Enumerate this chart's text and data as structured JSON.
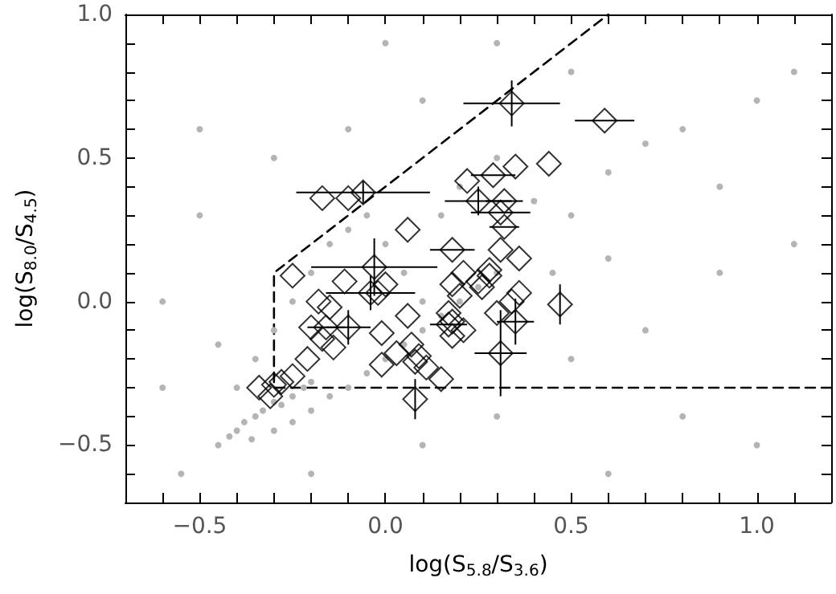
{
  "chart_data": {
    "type": "scatter",
    "xlabel": "log(S$_{5.8}$/S$_{3.6}$)",
    "ylabel": "log(S$_{8.0}$/S$_{4.5}$)",
    "xlim": [
      -0.7,
      1.2
    ],
    "ylim": [
      -0.7,
      1.0
    ],
    "xticks": [
      {
        "value": -0.7,
        "label": null
      },
      {
        "value": -0.6,
        "label": null
      },
      {
        "value": -0.5,
        "label": "−0.5"
      },
      {
        "value": -0.4,
        "label": null
      },
      {
        "value": -0.3,
        "label": null
      },
      {
        "value": -0.2,
        "label": null
      },
      {
        "value": -0.1,
        "label": null
      },
      {
        "value": 0,
        "label": "0.0"
      },
      {
        "value": 0.1,
        "label": null
      },
      {
        "value": 0.2,
        "label": null
      },
      {
        "value": 0.3,
        "label": null
      },
      {
        "value": 0.4,
        "label": null
      },
      {
        "value": 0.5,
        "label": "0.5"
      },
      {
        "value": 0.6,
        "label": null
      },
      {
        "value": 0.7,
        "label": null
      },
      {
        "value": 0.8,
        "label": null
      },
      {
        "value": 0.9,
        "label": null
      },
      {
        "value": 1.0,
        "label": "1.0"
      },
      {
        "value": 1.1,
        "label": null
      },
      {
        "value": 1.2,
        "label": null
      }
    ],
    "yticks": [
      {
        "value": -0.7,
        "label": null
      },
      {
        "value": -0.6,
        "label": null
      },
      {
        "value": -0.5,
        "label": "−0.5"
      },
      {
        "value": -0.4,
        "label": null
      },
      {
        "value": -0.3,
        "label": null
      },
      {
        "value": -0.2,
        "label": null
      },
      {
        "value": -0.1,
        "label": null
      },
      {
        "value": 0,
        "label": "0.0"
      },
      {
        "value": 0.1,
        "label": null
      },
      {
        "value": 0.2,
        "label": null
      },
      {
        "value": 0.3,
        "label": null
      },
      {
        "value": 0.4,
        "label": null
      },
      {
        "value": 0.5,
        "label": "0.5"
      },
      {
        "value": 0.6,
        "label": null
      },
      {
        "value": 0.7,
        "label": null
      },
      {
        "value": 0.8,
        "label": null
      },
      {
        "value": 0.9,
        "label": null
      },
      {
        "value": 1.0,
        "label": "1.0"
      }
    ],
    "series": [
      {
        "marker": "circle",
        "color": "#b4b4b4",
        "x": [
          -0.45,
          -0.42,
          -0.4,
          -0.38,
          -0.35,
          -0.33,
          -0.3,
          -0.28,
          -0.25,
          -0.22,
          -0.2,
          -0.36,
          -0.3,
          -0.25,
          -0.2,
          -0.15,
          -0.1,
          -0.05,
          0.0,
          0.05,
          0.1,
          0.15,
          0.2,
          0.25,
          0.3,
          -0.4,
          -0.35,
          -0.3,
          -0.25,
          -0.2,
          -0.15,
          -0.1,
          -0.05,
          0.0,
          0.05,
          0.1,
          0.15,
          0.2,
          0.3,
          0.4,
          0.5,
          0.6,
          0.7,
          0.8,
          0.9,
          1.0,
          1.1,
          0.5,
          0.3,
          0.1,
          -0.1,
          -0.3,
          -0.5,
          -0.6,
          -0.6,
          -0.55,
          -0.2,
          0.1,
          0.3,
          0.5,
          0.7,
          0.9,
          1.1,
          0.8,
          0.6,
          1.0,
          0.45,
          0.6,
          -0.45,
          -0.5,
          0.0
        ],
        "values": [
          -0.5,
          -0.47,
          -0.45,
          -0.42,
          -0.4,
          -0.38,
          -0.35,
          -0.36,
          -0.33,
          -0.3,
          -0.28,
          -0.48,
          -0.45,
          -0.42,
          -0.38,
          -0.33,
          -0.3,
          -0.25,
          -0.2,
          -0.15,
          -0.1,
          -0.05,
          0.0,
          0.05,
          0.1,
          -0.3,
          -0.2,
          -0.1,
          0.0,
          0.1,
          0.2,
          0.25,
          0.3,
          0.2,
          0.1,
          0.0,
          0.3,
          0.4,
          0.5,
          0.35,
          0.3,
          0.45,
          0.55,
          0.6,
          0.4,
          0.7,
          0.8,
          0.8,
          0.9,
          0.7,
          0.6,
          0.5,
          0.3,
          0.0,
          -0.3,
          -0.6,
          -0.6,
          -0.5,
          -0.4,
          -0.2,
          -0.1,
          0.1,
          0.2,
          -0.4,
          -0.6,
          -0.5,
          0.1,
          0.15,
          -0.15,
          0.6,
          0.9
        ]
      },
      {
        "type": "line",
        "marker": "none",
        "line_style": "dashed",
        "color": "#000000",
        "x": [
          1.2,
          -0.3,
          -0.3,
          0.6
        ],
        "values": [
          -0.3,
          -0.3,
          0.1,
          1.0
        ]
      },
      {
        "marker": "diamond",
        "color": "#000000",
        "x": [
          0.34,
          0.59,
          0.44,
          0.35,
          0.29,
          0.22,
          0.25,
          0.32,
          0.31,
          0.32,
          -0.06,
          -0.1,
          -0.17,
          0.06,
          0.18,
          0.31,
          0.36,
          -0.03,
          -0.25,
          -0.11,
          0.21,
          0.28,
          0.28,
          0.18,
          0.25,
          0.26,
          0.0,
          -0.04,
          -0.02,
          0.2,
          -0.18,
          -0.15,
          0.36,
          0.34,
          0.47,
          0.3,
          0.06,
          0.17,
          0.18,
          0.35,
          -0.2,
          -0.16,
          -0.1,
          0.17,
          0.21,
          -0.01,
          -0.17,
          -0.14,
          0.07,
          0.18,
          0.03,
          -0.21,
          0.31,
          0.09,
          -0.01,
          0.11,
          0.08,
          0.15,
          0.08,
          -0.25,
          -0.28,
          -0.3,
          -0.34,
          -0.31
        ],
        "values": [
          0.69,
          0.63,
          0.48,
          0.47,
          0.44,
          0.42,
          0.35,
          0.35,
          0.31,
          0.26,
          0.38,
          0.36,
          0.36,
          0.25,
          0.18,
          0.18,
          0.15,
          0.12,
          0.09,
          0.07,
          0.1,
          0.11,
          0.09,
          0.06,
          0.07,
          0.05,
          0.06,
          0.03,
          0.03,
          0.02,
          0.0,
          -0.02,
          0.03,
          0.0,
          -0.01,
          -0.04,
          -0.05,
          -0.04,
          -0.07,
          -0.07,
          -0.09,
          -0.09,
          -0.09,
          -0.08,
          -0.1,
          -0.11,
          -0.13,
          -0.16,
          -0.15,
          -0.12,
          -0.18,
          -0.2,
          -0.18,
          -0.19,
          -0.22,
          -0.23,
          -0.21,
          -0.27,
          -0.34,
          -0.26,
          -0.28,
          -0.29,
          -0.3,
          -0.33
        ],
        "xerrors": [
          0.13,
          0.08,
          null,
          null,
          0.06,
          null,
          0.09,
          0.05,
          0.08,
          0.04,
          0.18,
          null,
          null,
          null,
          0.06,
          null,
          null,
          0.17,
          null,
          null,
          null,
          null,
          null,
          null,
          null,
          null,
          null,
          0.12,
          null,
          null,
          null,
          null,
          null,
          null,
          null,
          null,
          null,
          null,
          null,
          0.05,
          null,
          0.05,
          0.06,
          0.05,
          null,
          null,
          null,
          null,
          null,
          null,
          null,
          null,
          0.07,
          null,
          null,
          null,
          null,
          null,
          null,
          null,
          null,
          null,
          null,
          null
        ],
        "errors": [
          0.08,
          null,
          null,
          null,
          null,
          null,
          0.05,
          null,
          null,
          null,
          0.04,
          null,
          null,
          null,
          null,
          null,
          null,
          0.1,
          null,
          null,
          null,
          null,
          null,
          null,
          null,
          null,
          null,
          0.06,
          null,
          null,
          null,
          null,
          null,
          null,
          0.07,
          null,
          null,
          null,
          null,
          0.08,
          null,
          null,
          0.06,
          null,
          null,
          null,
          null,
          null,
          null,
          null,
          null,
          null,
          0.15,
          null,
          null,
          null,
          null,
          null,
          0.07,
          null,
          null,
          null,
          null,
          null
        ]
      }
    ]
  }
}
